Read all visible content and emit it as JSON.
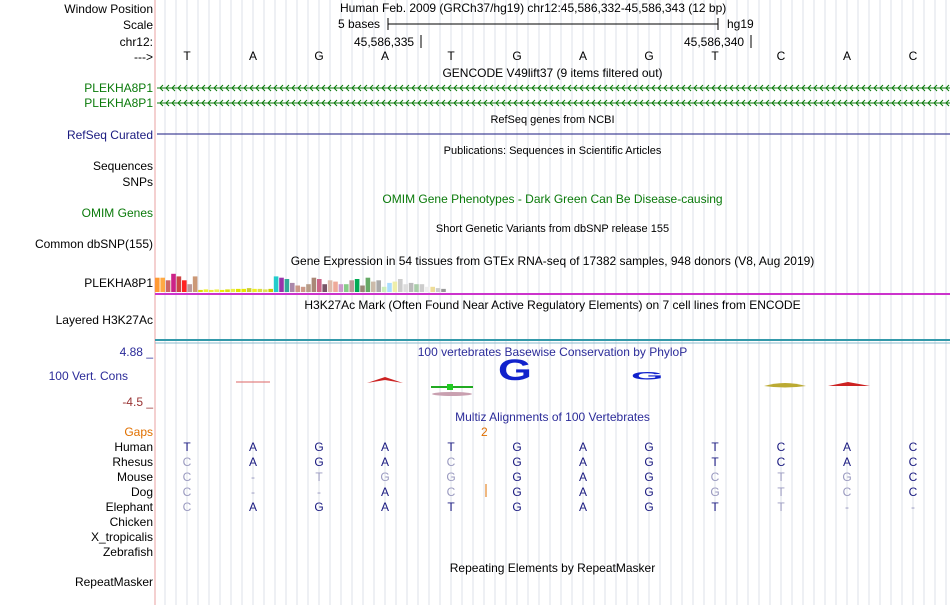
{
  "header": {
    "window_position_label": "Window Position",
    "window_position_value": "Human Feb. 2009 (GRCh37/hg19)   chr12:45,586,332-45,586,343 (12 bp)",
    "scale_label": "Scale",
    "scale_value": "5 bases",
    "scale_assembly": "hg19",
    "chrom_label": "chr12:",
    "coord_1": "45,586,335",
    "coord_2": "45,586,340",
    "strand_label": "--->"
  },
  "sequence": [
    "T",
    "A",
    "G",
    "A",
    "T",
    "G",
    "A",
    "G",
    "T",
    "C",
    "A",
    "C"
  ],
  "tracks": {
    "gencode": {
      "title": "GENCODE V49lift37 (9 items filtered out)",
      "genes": [
        "PLEKHA8P1",
        "PLEKHA8P1"
      ],
      "color": "#0a7a0a"
    },
    "refseq": {
      "title": "RefSeq genes from NCBI",
      "label": "RefSeq Curated",
      "color": "#1a1a80"
    },
    "publications": {
      "title": "Publications: Sequences in Scientific Articles",
      "label": "Sequences"
    },
    "snps_label": "SNPs",
    "omim": {
      "title": "OMIM Gene Phenotypes - Dark Green Can Be Disease-causing",
      "label": "OMIM Genes",
      "color": "#0a7a0a"
    },
    "dbsnp": {
      "title": "Short Genetic Variants from dbSNP release 155",
      "label": "Common dbSNP(155)"
    },
    "gtex": {
      "title": "Gene Expression in 54 tissues from GTEx RNA-seq of 17382 samples, 948 donors (V8, Aug 2019)",
      "label": "PLEKHA8P1",
      "values": [
        0.55,
        0.55,
        0.45,
        0.7,
        0.6,
        0.45,
        0.3,
        0.6,
        0.08,
        0.1,
        0.08,
        0.1,
        0.08,
        0.1,
        0.12,
        0.12,
        0.12,
        0.15,
        0.12,
        0.12,
        0.1,
        0.12,
        0.6,
        0.55,
        0.5,
        0.35,
        0.25,
        0.2,
        0.3,
        0.55,
        0.5,
        0.3,
        0.45,
        0.4,
        0.3,
        0.3,
        0.45,
        0.5,
        0.25,
        0.55,
        0.4,
        0.45,
        0.2,
        0.35,
        0.4,
        0.5,
        0.3,
        0.35,
        0.3,
        0.3,
        0.2,
        0.2,
        0.15,
        0.12
      ],
      "colors": [
        "#ff9933",
        "#ffaa44",
        "#cc6666",
        "#cc2288",
        "#cc4444",
        "#ff2222",
        "#bb9999",
        "#cc9977",
        "#dddd00",
        "#eeee33",
        "#eeee33",
        "#eeee55",
        "#eeee00",
        "#dddd11",
        "#eeee44",
        "#e0e000",
        "#e8e800",
        "#cccc33",
        "#eeee22",
        "#dddd44",
        "#e0e055",
        "#cccc00",
        "#22cccc",
        "#9933aa",
        "#33aa99",
        "#aa88aa",
        "#cc9988",
        "#cc9988",
        "#b69c88",
        "#aa8877",
        "#cc6688",
        "#775566",
        "#ddbbaa",
        "#eeaa99",
        "#cc99cc",
        "#88cc88",
        "#bb9999",
        "#00aa55",
        "#998877",
        "#66aa66",
        "#ccbbaa",
        "#aaaaaa",
        "#cceebb",
        "#aaddff",
        "#eeeeaa",
        "#cccccc",
        "#dddddd",
        "#bbbbbb",
        "#aaccaa",
        "#cccccc",
        "#eeeeee",
        "#eedd99",
        "#cccccc",
        "#999999"
      ],
      "color": "#cc33cc"
    },
    "h3k27ac": {
      "title": "H3K27Ac Mark (Often Found Near Active Regulatory Elements) on 7 cell lines from ENCODE",
      "label": "Layered H3K27Ac",
      "color": "#3399aa"
    },
    "phylop": {
      "title": "100 vertebrates Basewise Conservation by PhyloP",
      "label": "100 Vert. Cons",
      "max_label": "4.88 _",
      "min_label": "-4.5 _",
      "logo_letters": [
        "G",
        "G"
      ],
      "color": "#2b2b99"
    },
    "multiz": {
      "title": "Multiz Alignments of 100 Vertebrates",
      "gaps_label": "Gaps",
      "gap_count": "2",
      "color": "#2b2b99",
      "species": [
        {
          "name": "Human",
          "color": "#1a1a80",
          "bases": [
            "T",
            "A",
            "G",
            "A",
            "T",
            "G",
            "A",
            "G",
            "T",
            "C",
            "A",
            "C"
          ],
          "dim": [
            0,
            0,
            0,
            0,
            0,
            0,
            0,
            0,
            0,
            0,
            0,
            0
          ]
        },
        {
          "name": "Rhesus",
          "color": "#1a1a80",
          "bases": [
            "C",
            "A",
            "G",
            "A",
            "C",
            "G",
            "A",
            "G",
            "T",
            "C",
            "A",
            "C"
          ],
          "dim": [
            1,
            0,
            0,
            0,
            1,
            0,
            0,
            0,
            0,
            0,
            0,
            0
          ]
        },
        {
          "name": "Mouse",
          "color": "#0a7a0a",
          "bases": [
            "C",
            "-",
            "T",
            "G",
            "G",
            "G",
            "A",
            "G",
            "C",
            "T",
            "G",
            "C"
          ],
          "dim": [
            1,
            1,
            1,
            1,
            1,
            0,
            0,
            0,
            1,
            1,
            1,
            0
          ]
        },
        {
          "name": "Dog",
          "color": "#0a7a0a",
          "bases": [
            "C",
            "-",
            "-",
            "A",
            "C",
            "G",
            "A",
            "G",
            "G",
            "T",
            "C",
            "C"
          ],
          "dim": [
            1,
            1,
            1,
            0,
            1,
            0,
            0,
            0,
            1,
            1,
            1,
            0
          ]
        },
        {
          "name": "Elephant",
          "color": "#0a7a0a",
          "bases": [
            "C",
            "A",
            "G",
            "A",
            "T",
            "G",
            "A",
            "G",
            "T",
            "T",
            "-",
            "-"
          ],
          "dim": [
            1,
            0,
            0,
            0,
            0,
            0,
            0,
            0,
            0,
            1,
            1,
            1
          ]
        },
        {
          "name": "Chicken",
          "color": "#0a7a0a",
          "bases": [],
          "dim": []
        },
        {
          "name": "X_tropicalis",
          "color": "#0a7a0a",
          "bases": [],
          "dim": []
        },
        {
          "name": "Zebrafish",
          "color": "#0a7a0a",
          "bases": [],
          "dim": []
        }
      ]
    },
    "repeatmasker": {
      "title": "Repeating Elements by RepeatMasker",
      "label": "RepeatMasker"
    }
  }
}
